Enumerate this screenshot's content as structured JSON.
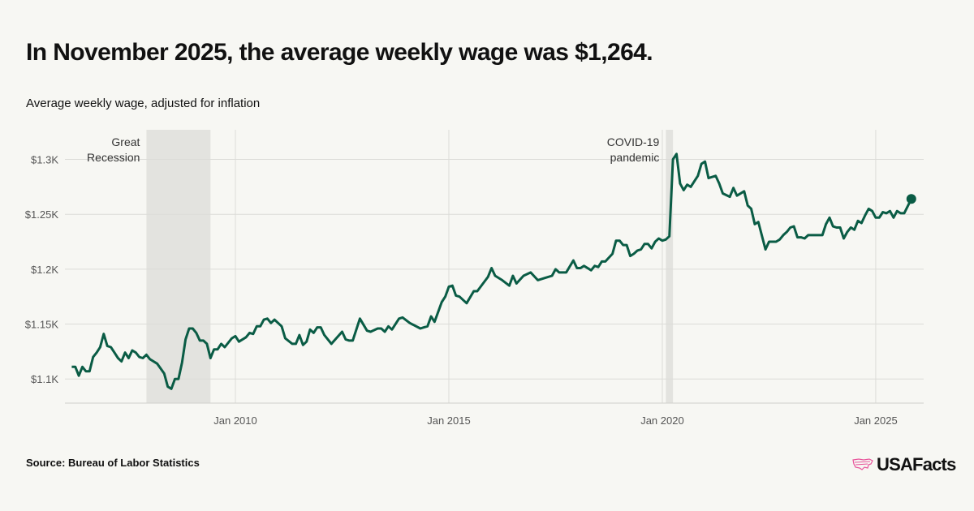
{
  "title": "In November 2025, the average weekly wage was $1,264.",
  "subtitle": "Average weekly wage, adjusted for inflation",
  "source": "Source: Bureau of Labor Statistics",
  "logo": {
    "text": "USAFacts",
    "icon": "us-map-outline-icon",
    "icon_color": "#e8559b"
  },
  "chart_data": {
    "type": "line",
    "title": "",
    "xlabel": "",
    "ylabel": "",
    "line_color": "#0a5c45",
    "shade_color": "#e3e3df",
    "grid": true,
    "ylim": [
      1078,
      1327
    ],
    "xlim": [
      "2006-03",
      "2025-11"
    ],
    "y_ticks": [
      {
        "value": 1100,
        "label": "$1.1K"
      },
      {
        "value": 1150,
        "label": "$1.15K"
      },
      {
        "value": 1200,
        "label": "$1.2K"
      },
      {
        "value": 1250,
        "label": "$1.25K"
      },
      {
        "value": 1300,
        "label": "$1.3K"
      }
    ],
    "x_ticks": [
      {
        "date": "2010-01",
        "label": "Jan 2010"
      },
      {
        "date": "2015-01",
        "label": "Jan 2015"
      },
      {
        "date": "2020-01",
        "label": "Jan 2020"
      },
      {
        "date": "2025-01",
        "label": "Jan 2025"
      }
    ],
    "shaded_periods": [
      {
        "start": "2007-12",
        "end": "2009-06",
        "label_lines": [
          "Great",
          "Recession"
        ]
      },
      {
        "start": "2020-02",
        "end": "2020-04",
        "label_lines": [
          "COVID-19",
          "pandemic"
        ]
      }
    ],
    "highlight_last_point": true,
    "points": [
      [
        "2006-03",
        1111
      ],
      [
        "2006-04",
        1111
      ],
      [
        "2006-05",
        1103
      ],
      [
        "2006-06",
        1111
      ],
      [
        "2006-07",
        1107
      ],
      [
        "2006-08",
        1107
      ],
      [
        "2006-09",
        1120
      ],
      [
        "2006-10",
        1124
      ],
      [
        "2006-11",
        1129
      ],
      [
        "2006-12",
        1141
      ],
      [
        "2007-01",
        1130
      ],
      [
        "2007-02",
        1129
      ],
      [
        "2007-03",
        1124
      ],
      [
        "2007-04",
        1119
      ],
      [
        "2007-05",
        1116
      ],
      [
        "2007-06",
        1124
      ],
      [
        "2007-07",
        1119
      ],
      [
        "2007-08",
        1126
      ],
      [
        "2007-09",
        1124
      ],
      [
        "2007-10",
        1120
      ],
      [
        "2007-11",
        1119
      ],
      [
        "2007-12",
        1122
      ],
      [
        "2008-01",
        1118
      ],
      [
        "2008-03",
        1114
      ],
      [
        "2008-05",
        1105
      ],
      [
        "2008-06",
        1093
      ],
      [
        "2008-07",
        1091
      ],
      [
        "2008-08",
        1100
      ],
      [
        "2008-09",
        1100
      ],
      [
        "2008-10",
        1115
      ],
      [
        "2008-11",
        1136
      ],
      [
        "2008-12",
        1146
      ],
      [
        "2009-01",
        1146
      ],
      [
        "2009-02",
        1142
      ],
      [
        "2009-03",
        1135
      ],
      [
        "2009-04",
        1135
      ],
      [
        "2009-05",
        1132
      ],
      [
        "2009-06",
        1119
      ],
      [
        "2009-07",
        1127
      ],
      [
        "2009-08",
        1127
      ],
      [
        "2009-09",
        1132
      ],
      [
        "2009-10",
        1129
      ],
      [
        "2009-12",
        1137
      ],
      [
        "2010-01",
        1139
      ],
      [
        "2010-02",
        1134
      ],
      [
        "2010-04",
        1138
      ],
      [
        "2010-05",
        1142
      ],
      [
        "2010-06",
        1141
      ],
      [
        "2010-07",
        1148
      ],
      [
        "2010-08",
        1148
      ],
      [
        "2010-09",
        1154
      ],
      [
        "2010-10",
        1155
      ],
      [
        "2010-11",
        1151
      ],
      [
        "2010-12",
        1154
      ],
      [
        "2011-02",
        1148
      ],
      [
        "2011-03",
        1137
      ],
      [
        "2011-05",
        1132
      ],
      [
        "2011-06",
        1132
      ],
      [
        "2011-07",
        1140
      ],
      [
        "2011-08",
        1131
      ],
      [
        "2011-09",
        1134
      ],
      [
        "2011-10",
        1145
      ],
      [
        "2011-11",
        1142
      ],
      [
        "2011-12",
        1147
      ],
      [
        "2012-01",
        1147
      ],
      [
        "2012-02",
        1140
      ],
      [
        "2012-04",
        1132
      ],
      [
        "2012-07",
        1143
      ],
      [
        "2012-08",
        1136
      ],
      [
        "2012-09",
        1135
      ],
      [
        "2012-10",
        1135
      ],
      [
        "2012-12",
        1155
      ],
      [
        "2013-02",
        1144
      ],
      [
        "2013-03",
        1143
      ],
      [
        "2013-05",
        1146
      ],
      [
        "2013-06",
        1146
      ],
      [
        "2013-07",
        1143
      ],
      [
        "2013-08",
        1148
      ],
      [
        "2013-09",
        1145
      ],
      [
        "2013-11",
        1155
      ],
      [
        "2013-12",
        1156
      ],
      [
        "2014-02",
        1151
      ],
      [
        "2014-05",
        1146
      ],
      [
        "2014-06",
        1147
      ],
      [
        "2014-07",
        1148
      ],
      [
        "2014-08",
        1157
      ],
      [
        "2014-09",
        1152
      ],
      [
        "2014-11",
        1170
      ],
      [
        "2014-12",
        1175
      ],
      [
        "2015-01",
        1184
      ],
      [
        "2015-02",
        1185
      ],
      [
        "2015-03",
        1176
      ],
      [
        "2015-04",
        1175
      ],
      [
        "2015-06",
        1169
      ],
      [
        "2015-08",
        1180
      ],
      [
        "2015-09",
        1180
      ],
      [
        "2015-12",
        1193
      ],
      [
        "2016-01",
        1201
      ],
      [
        "2016-02",
        1194
      ],
      [
        "2016-04",
        1190
      ],
      [
        "2016-06",
        1185
      ],
      [
        "2016-07",
        1194
      ],
      [
        "2016-08",
        1187
      ],
      [
        "2016-10",
        1194
      ],
      [
        "2016-12",
        1197
      ],
      [
        "2017-02",
        1190
      ],
      [
        "2017-04",
        1192
      ],
      [
        "2017-06",
        1194
      ],
      [
        "2017-07",
        1200
      ],
      [
        "2017-08",
        1197
      ],
      [
        "2017-10",
        1197
      ],
      [
        "2017-12",
        1208
      ],
      [
        "2018-01",
        1201
      ],
      [
        "2018-02",
        1201
      ],
      [
        "2018-03",
        1203
      ],
      [
        "2018-05",
        1199
      ],
      [
        "2018-06",
        1203
      ],
      [
        "2018-07",
        1202
      ],
      [
        "2018-08",
        1207
      ],
      [
        "2018-09",
        1207
      ],
      [
        "2018-11",
        1214
      ],
      [
        "2018-12",
        1226
      ],
      [
        "2019-01",
        1226
      ],
      [
        "2019-02",
        1222
      ],
      [
        "2019-03",
        1222
      ],
      [
        "2019-04",
        1212
      ],
      [
        "2019-05",
        1214
      ],
      [
        "2019-06",
        1217
      ],
      [
        "2019-07",
        1218
      ],
      [
        "2019-08",
        1223
      ],
      [
        "2019-09",
        1223
      ],
      [
        "2019-10",
        1219
      ],
      [
        "2019-11",
        1225
      ],
      [
        "2019-12",
        1228
      ],
      [
        "2020-01",
        1226
      ],
      [
        "2020-02",
        1227
      ],
      [
        "2020-03",
        1230
      ],
      [
        "2020-04",
        1300
      ],
      [
        "2020-05",
        1305
      ],
      [
        "2020-06",
        1278
      ],
      [
        "2020-07",
        1272
      ],
      [
        "2020-08",
        1277
      ],
      [
        "2020-09",
        1275
      ],
      [
        "2020-10",
        1280
      ],
      [
        "2020-11",
        1285
      ],
      [
        "2020-12",
        1296
      ],
      [
        "2021-01",
        1298
      ],
      [
        "2021-02",
        1283
      ],
      [
        "2021-04",
        1285
      ],
      [
        "2021-05",
        1278
      ],
      [
        "2021-06",
        1269
      ],
      [
        "2021-08",
        1266
      ],
      [
        "2021-09",
        1274
      ],
      [
        "2021-10",
        1267
      ],
      [
        "2021-12",
        1271
      ],
      [
        "2022-01",
        1258
      ],
      [
        "2022-02",
        1255
      ],
      [
        "2022-03",
        1241
      ],
      [
        "2022-04",
        1243
      ],
      [
        "2022-06",
        1218
      ],
      [
        "2022-07",
        1225
      ],
      [
        "2022-09",
        1225
      ],
      [
        "2022-10",
        1227
      ],
      [
        "2022-11",
        1231
      ],
      [
        "2022-12",
        1234
      ],
      [
        "2023-01",
        1238
      ],
      [
        "2023-02",
        1239
      ],
      [
        "2023-03",
        1229
      ],
      [
        "2023-04",
        1229
      ],
      [
        "2023-05",
        1228
      ],
      [
        "2023-06",
        1231
      ],
      [
        "2023-10",
        1231
      ],
      [
        "2023-11",
        1241
      ],
      [
        "2023-12",
        1247
      ],
      [
        "2024-01",
        1239
      ],
      [
        "2024-02",
        1238
      ],
      [
        "2024-03",
        1238
      ],
      [
        "2024-04",
        1228
      ],
      [
        "2024-05",
        1234
      ],
      [
        "2024-06",
        1238
      ],
      [
        "2024-07",
        1236
      ],
      [
        "2024-08",
        1244
      ],
      [
        "2024-09",
        1242
      ],
      [
        "2024-10",
        1249
      ],
      [
        "2024-11",
        1255
      ],
      [
        "2024-12",
        1253
      ],
      [
        "2025-01",
        1247
      ],
      [
        "2025-02",
        1247
      ],
      [
        "2025-03",
        1252
      ],
      [
        "2025-04",
        1251
      ],
      [
        "2025-05",
        1253
      ],
      [
        "2025-06",
        1247
      ],
      [
        "2025-07",
        1253
      ],
      [
        "2025-08",
        1251
      ],
      [
        "2025-09",
        1251
      ],
      [
        "2025-11",
        1264
      ]
    ]
  }
}
